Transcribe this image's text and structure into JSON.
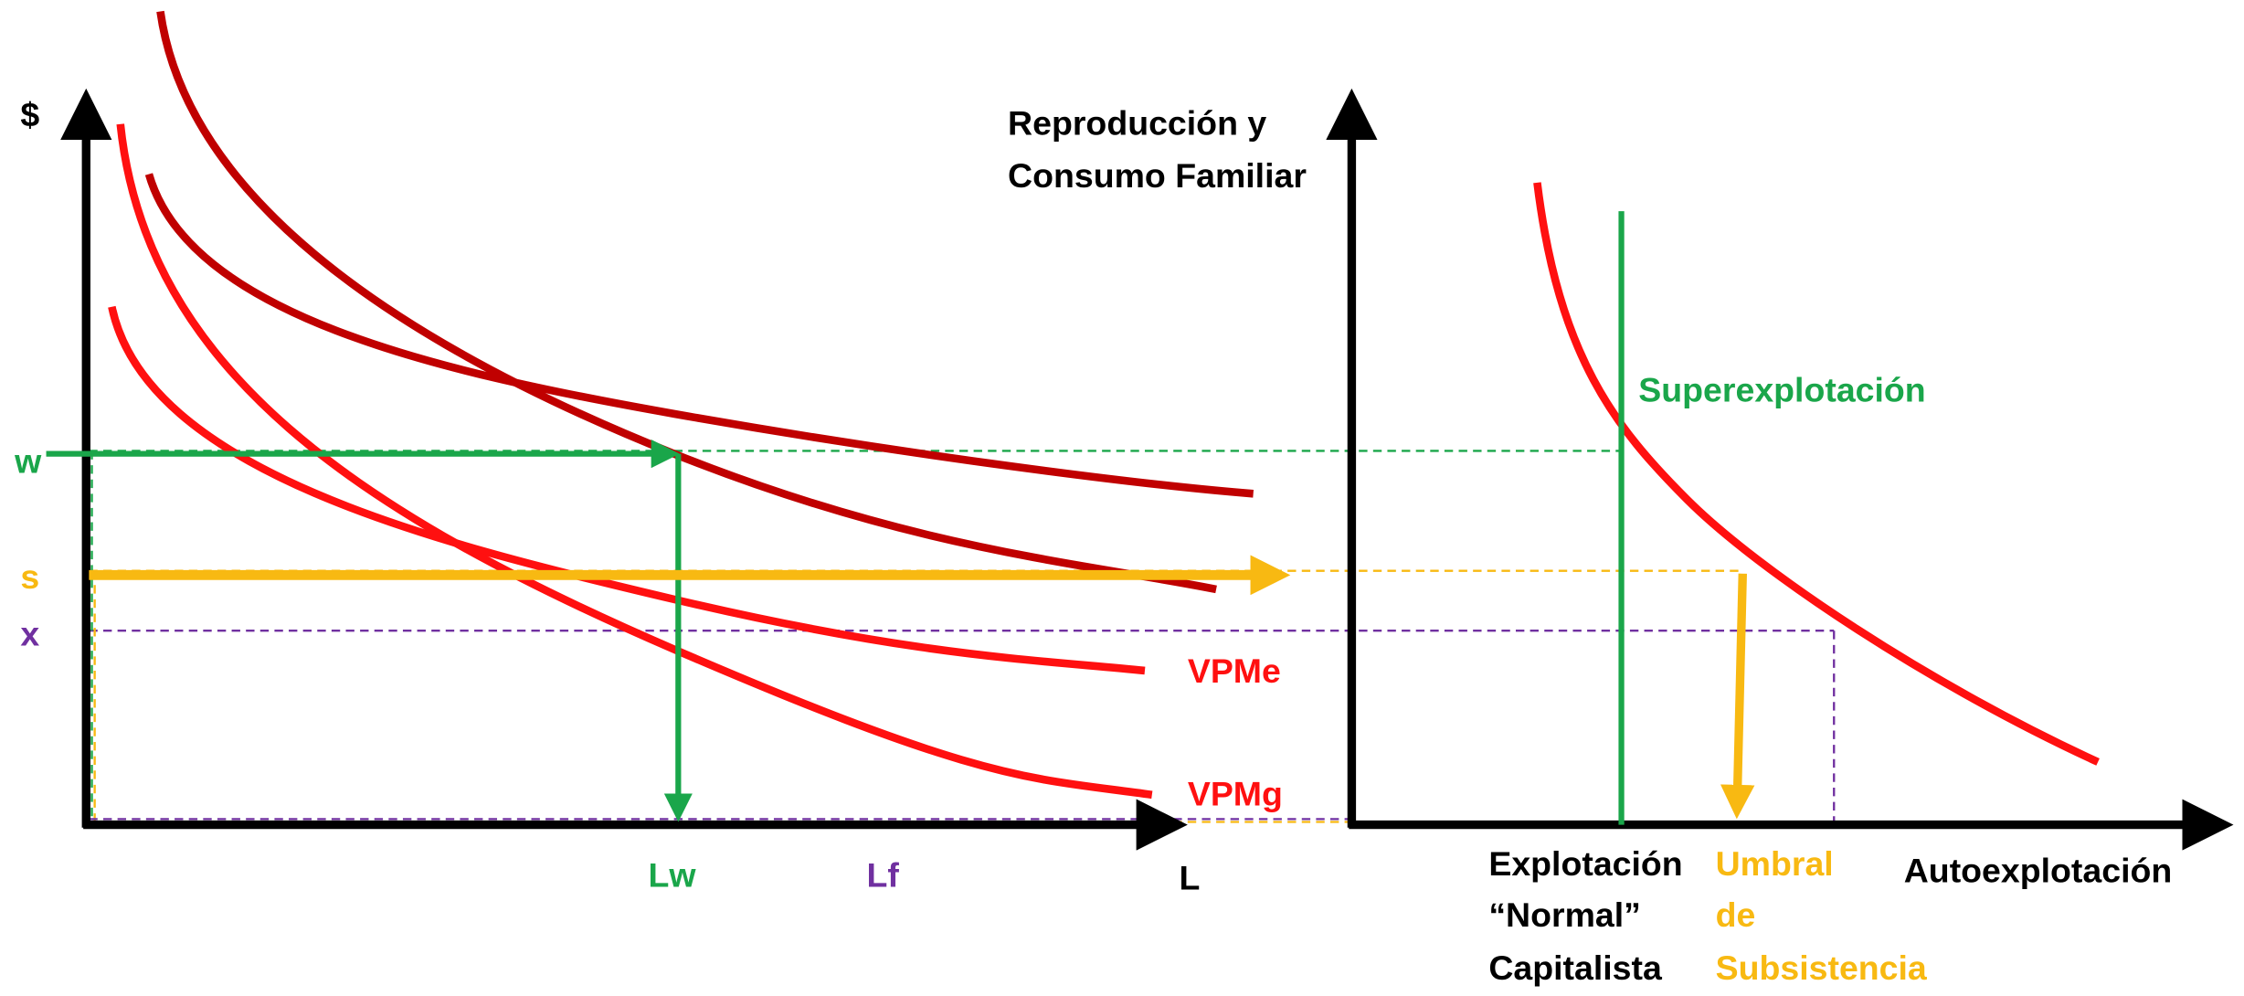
{
  "left_graph": {
    "y_axis_label": "$",
    "x_axis_label": "L",
    "levels": [
      "w",
      "s",
      "x"
    ],
    "curves": [
      "VPMe",
      "VPMg"
    ],
    "x_marks": [
      "Lw",
      "Lf"
    ]
  },
  "right_graph": {
    "y_axis_label": [
      "Reproducción y",
      "Consumo Familiar"
    ],
    "vertical_label": "Superexplotación",
    "zones": [
      [
        "Explotación",
        "“Normal”",
        "Capitalista"
      ],
      [
        "Umbral",
        "de",
        "Subsistencia"
      ],
      [
        "Autoexplotación"
      ]
    ]
  }
}
